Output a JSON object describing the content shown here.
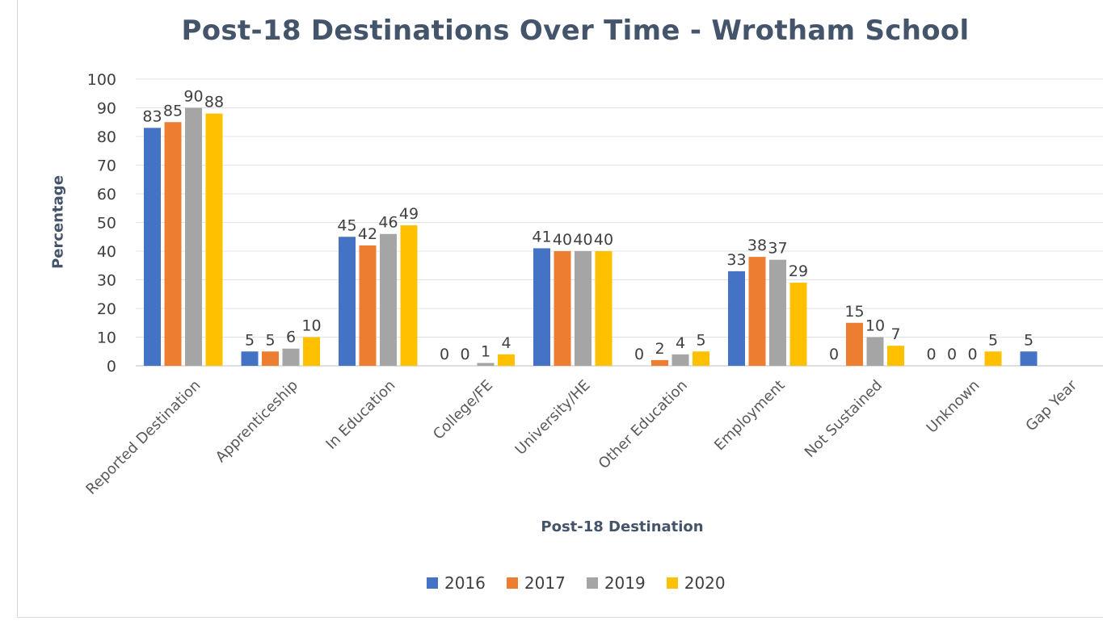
{
  "chart_data": {
    "type": "bar",
    "title": "Post-18 Destinations Over Time - Wrotham School",
    "xlabel": "Post-18 Destination",
    "ylabel": "Percentage",
    "ylim": [
      0,
      100
    ],
    "yticks": [
      0,
      10,
      20,
      30,
      40,
      50,
      60,
      70,
      80,
      90,
      100
    ],
    "grid": true,
    "legend_position": "bottom",
    "categories": [
      "Reported Destination",
      "Apprenticeship",
      "In Education",
      "College/FE",
      "University/HE",
      "Other Education",
      "Employment",
      "Not Sustained",
      "Unknown",
      "Gap Year"
    ],
    "series": [
      {
        "name": "2016",
        "color": "#4472c4",
        "values": [
          83,
          5,
          45,
          0,
          41,
          0,
          33,
          0,
          0,
          5
        ]
      },
      {
        "name": "2017",
        "color": "#ed7d31",
        "values": [
          85,
          5,
          42,
          0,
          40,
          2,
          38,
          15,
          0,
          null
        ]
      },
      {
        "name": "2019",
        "color": "#a5a5a5",
        "values": [
          90,
          6,
          46,
          1,
          40,
          4,
          37,
          10,
          0,
          null
        ]
      },
      {
        "name": "2020",
        "color": "#ffc000",
        "values": [
          88,
          10,
          49,
          4,
          40,
          5,
          29,
          7,
          5,
          null
        ]
      }
    ]
  }
}
